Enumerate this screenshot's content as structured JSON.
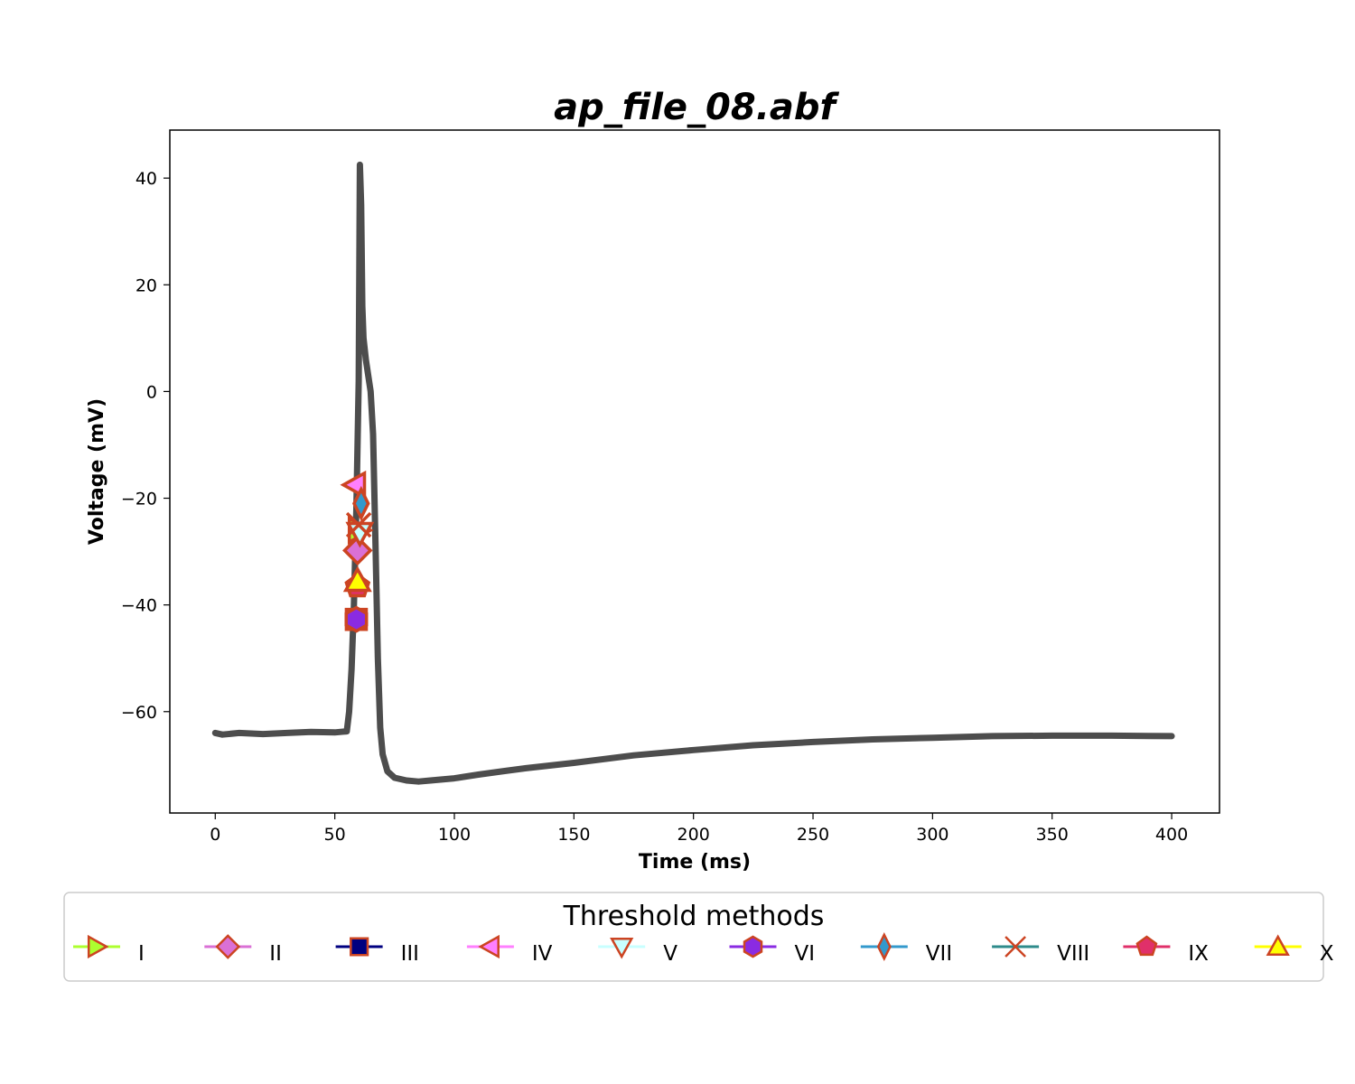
{
  "chart_data": {
    "type": "line",
    "title": "ap_file_08.abf",
    "xlabel": "Time (ms)",
    "ylabel": "Voltage (mV)",
    "xlim": [
      -19,
      420
    ],
    "ylim": [
      -79,
      49
    ],
    "xticks": [
      0,
      50,
      100,
      150,
      200,
      250,
      300,
      350,
      400
    ],
    "yticks": [
      -60,
      -40,
      -20,
      0,
      20,
      40
    ],
    "grid": false,
    "trace": {
      "color": "#4d4d4d",
      "x": [
        0,
        3,
        10,
        20,
        30,
        40,
        50,
        55,
        56,
        57,
        58,
        59,
        60,
        60.5,
        61,
        61.5,
        62,
        63,
        65,
        66,
        67,
        68,
        69,
        70,
        72,
        75,
        80,
        85,
        90,
        100,
        110,
        120,
        130,
        150,
        175,
        200,
        225,
        250,
        275,
        300,
        325,
        350,
        375,
        400
      ],
      "y": [
        -64,
        -64.3,
        -64,
        -64.2,
        -64,
        -63.8,
        -63.9,
        -63.7,
        -60,
        -52,
        -40,
        -22,
        2,
        42.5,
        35,
        16,
        10,
        6,
        0,
        -8,
        -28,
        -50,
        -63,
        -68,
        -71.2,
        -72.4,
        -72.9,
        -73.1,
        -72.9,
        -72.5,
        -71.8,
        -71.2,
        -70.6,
        -69.6,
        -68.2,
        -67.2,
        -66.3,
        -65.7,
        -65.2,
        -64.9,
        -64.6,
        -64.5,
        -64.5,
        -64.6
      ]
    },
    "markers": [
      {
        "method": "I",
        "x": 60,
        "y": -26,
        "shape": "triangle-right",
        "color": "#adff2f"
      },
      {
        "method": "II",
        "x": 59.5,
        "y": -29.8,
        "shape": "diamond",
        "color": "#da70d6"
      },
      {
        "method": "III",
        "x": 59,
        "y": -42.7,
        "shape": "square",
        "color": "#000080"
      },
      {
        "method": "IV",
        "x": 58.5,
        "y": -17.5,
        "shape": "triangle-left",
        "color": "#ff7fff"
      },
      {
        "method": "V",
        "x": 60.5,
        "y": -26.5,
        "shape": "triangle-down",
        "color": "#c8ffff"
      },
      {
        "method": "VI",
        "x": 59,
        "y": -42.7,
        "shape": "hexagon",
        "color": "#8a2be2"
      },
      {
        "method": "VII",
        "x": 61,
        "y": -21,
        "shape": "thin-diamond",
        "color": "#3399cc"
      },
      {
        "method": "VIII",
        "x": 60,
        "y": -25,
        "shape": "x",
        "color": "#2e8b8b"
      },
      {
        "method": "IX",
        "x": 59.5,
        "y": -36.5,
        "shape": "pentagon",
        "color": "#e0306a"
      },
      {
        "method": "X",
        "x": 59.5,
        "y": -35.5,
        "shape": "triangle-up",
        "color": "#ffff00"
      }
    ],
    "marker_edge_color": "#cc4422",
    "legend": {
      "title": "Threshold methods",
      "placement": "below",
      "entries": [
        "I",
        "II",
        "III",
        "IV",
        "V",
        "VI",
        "VII",
        "VIII",
        "IX",
        "X"
      ]
    }
  }
}
